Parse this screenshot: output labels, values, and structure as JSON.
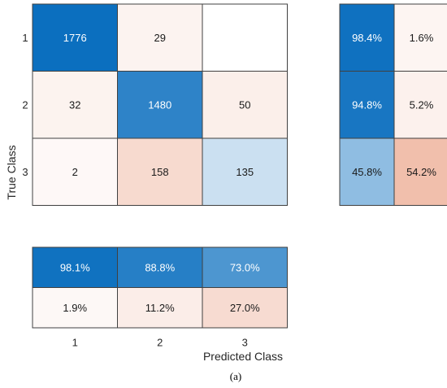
{
  "caption": "(a)",
  "chart_data": {
    "type": "heatmap",
    "title": "",
    "xlabel": "Predicted Class",
    "ylabel": "True Class",
    "classes": [
      "1",
      "2",
      "3"
    ],
    "matrix": [
      [
        1776,
        29,
        null
      ],
      [
        32,
        1480,
        50
      ],
      [
        2,
        158,
        135
      ]
    ],
    "row_summary": {
      "headers_hidden": true,
      "values": [
        [
          "98.4%",
          "1.6%"
        ],
        [
          "94.8%",
          "5.2%"
        ],
        [
          "45.8%",
          "54.2%"
        ]
      ],
      "numeric": [
        [
          98.4,
          1.6
        ],
        [
          94.8,
          5.2
        ],
        [
          45.8,
          54.2
        ]
      ]
    },
    "column_summary": {
      "values": [
        [
          "98.1%",
          "88.8%",
          "73.0%"
        ],
        [
          "1.9%",
          "11.2%",
          "27.0%"
        ]
      ],
      "numeric": [
        [
          98.1,
          88.8,
          73.0
        ],
        [
          1.9,
          11.2,
          27.0
        ]
      ]
    },
    "colors": {
      "correct": "#0b6fbf",
      "incorrect": "#e8987a",
      "empty": "#ffffff",
      "grid": "#404040",
      "dark_text": "#1a1a1a",
      "light_text": "#ffffff"
    }
  }
}
